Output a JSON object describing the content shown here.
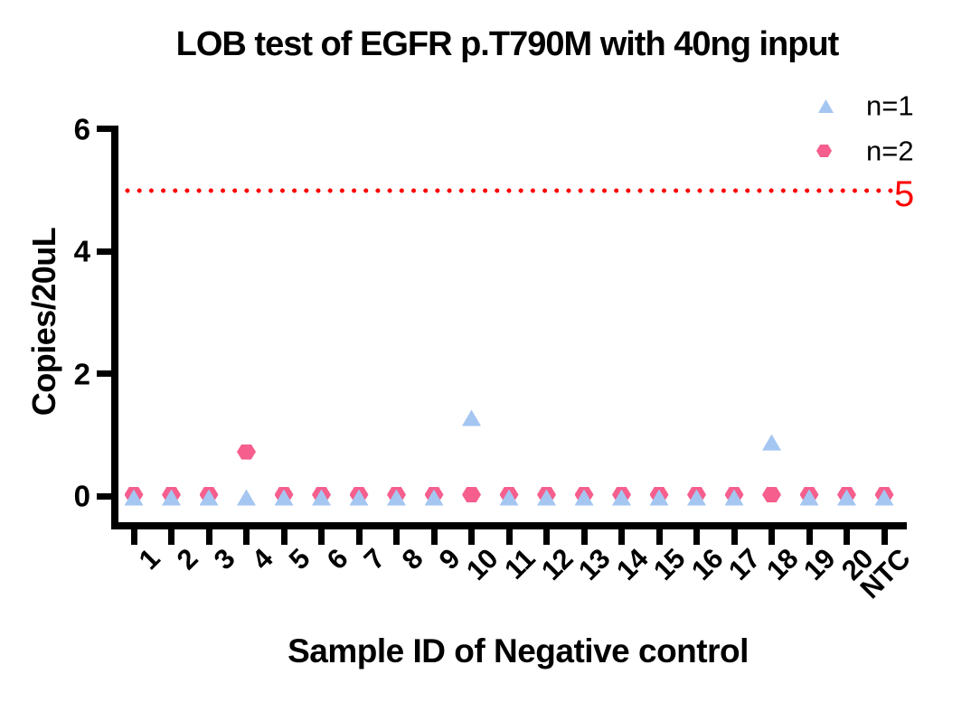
{
  "title": "LOB test of EGFR p.T790M with 40ng input",
  "colors": {
    "series_n1_blue": "#A5C6F1",
    "series_n2_pink": "#F55E8D",
    "threshold_red": "#FF0000",
    "axis_black": "#000000",
    "background": "#FFFFFF"
  },
  "chart_data": {
    "type": "scatter",
    "title": "LOB test of EGFR p.T790M with 40ng input",
    "xlabel": "Sample ID of Negative control",
    "ylabel": "Copies/20uL",
    "categories": [
      "1",
      "2",
      "3",
      "4",
      "5",
      "6",
      "7",
      "8",
      "9",
      "10",
      "11",
      "12",
      "13",
      "14",
      "15",
      "16",
      "17",
      "18",
      "19",
      "20",
      "NTC"
    ],
    "series": [
      {
        "name": "n=1",
        "marker": "triangle",
        "color": "#A5C6F1",
        "values": [
          0,
          0,
          0,
          0,
          0,
          0,
          0,
          0,
          0,
          1.3,
          0,
          0,
          0,
          0,
          0,
          0,
          0,
          0.9,
          0,
          0,
          0
        ]
      },
      {
        "name": "n=2",
        "marker": "hexagon",
        "color": "#F55E8D",
        "values": [
          0,
          0,
          0,
          0.7,
          0,
          0,
          0,
          0,
          0,
          0,
          0,
          0,
          0,
          0,
          0,
          0,
          0,
          0,
          0,
          0,
          0
        ]
      }
    ],
    "ylim": [
      0,
      6
    ],
    "yticks": [
      0,
      2,
      4,
      6
    ],
    "grid": false,
    "legend_position": "top-right",
    "threshold_line": {
      "value": 5,
      "label": "5",
      "style": "dotted",
      "color": "#FF0000"
    }
  }
}
